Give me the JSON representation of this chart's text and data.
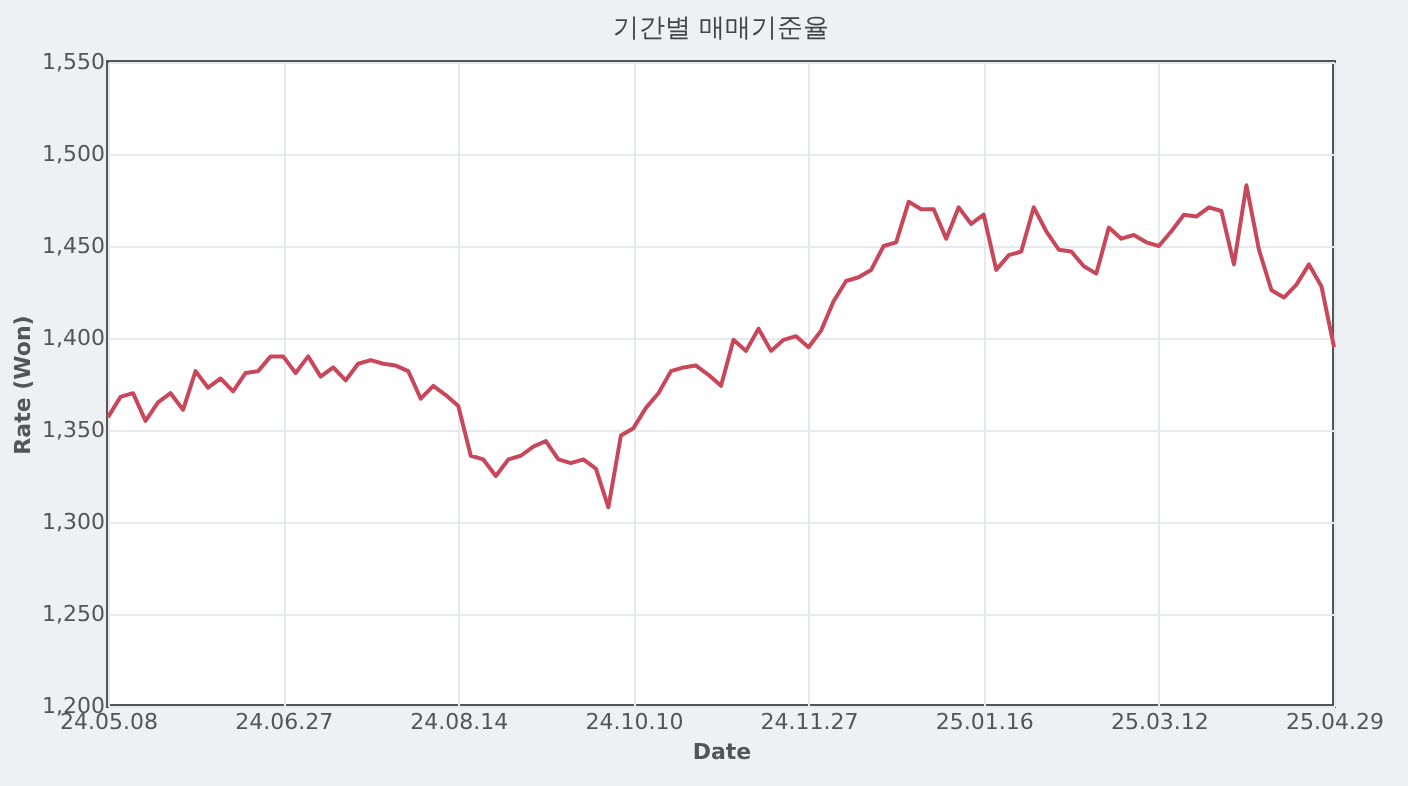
{
  "chart_data": {
    "type": "line",
    "title": "기간별 매매기준율",
    "xlabel": "Date",
    "ylabel": "Rate (Won)",
    "categories": [
      "24.05.08",
      null,
      null,
      null,
      null,
      null,
      null,
      null,
      null,
      null,
      null,
      null,
      null,
      null,
      "24.06.27",
      null,
      null,
      null,
      null,
      null,
      null,
      null,
      null,
      null,
      null,
      null,
      null,
      null,
      "24.08.14",
      null,
      null,
      null,
      null,
      null,
      null,
      null,
      null,
      null,
      null,
      null,
      null,
      null,
      "24.10.10",
      null,
      null,
      null,
      null,
      null,
      null,
      null,
      null,
      null,
      null,
      null,
      null,
      null,
      "24.11.27",
      null,
      null,
      null,
      null,
      null,
      null,
      null,
      null,
      null,
      null,
      null,
      null,
      null,
      "25.01.16",
      null,
      null,
      null,
      null,
      null,
      null,
      null,
      null,
      null,
      null,
      null,
      null,
      null,
      "25.03.12",
      null,
      null,
      null,
      null,
      null,
      null,
      null,
      null,
      null,
      null,
      null,
      null,
      null,
      "25.04.29"
    ],
    "series": [
      {
        "color": "#c8475a",
        "values": [
          1357,
          1368,
          1370,
          1355,
          1365,
          1370,
          1361,
          1382,
          1373,
          1378,
          1371,
          1381,
          1382,
          1390,
          1390,
          1381,
          1390,
          1379,
          1384,
          1377,
          1386,
          1388,
          1386,
          1385,
          1382,
          1367,
          1374,
          1369,
          1363,
          1336,
          1334,
          1325,
          1334,
          1336,
          1341,
          1344,
          1334,
          1332,
          1334,
          1329,
          1308,
          1347,
          1351,
          1362,
          1370,
          1382,
          1384,
          1385,
          1380,
          1374,
          1399,
          1393,
          1405,
          1393,
          1399,
          1401,
          1395,
          1404,
          1420,
          1431,
          1433,
          1437,
          1450,
          1452,
          1474,
          1470,
          1470,
          1454,
          1471,
          1462,
          1467,
          1437,
          1445,
          1447,
          1471,
          1458,
          1448,
          1447,
          1439,
          1435,
          1460,
          1454,
          1456,
          1452,
          1450,
          1458,
          1467,
          1466,
          1471,
          1469,
          1440,
          1483,
          1448,
          1426,
          1422,
          1429,
          1440,
          1428,
          1395
        ]
      }
    ],
    "ylim": [
      1200,
      1550
    ],
    "yticks": [
      {
        "value": 1200,
        "label": "1,200"
      },
      {
        "value": 1250,
        "label": "1,250"
      },
      {
        "value": 1300,
        "label": "1,300"
      },
      {
        "value": 1350,
        "label": "1,350"
      },
      {
        "value": 1400,
        "label": "1,400"
      },
      {
        "value": 1450,
        "label": "1,450"
      },
      {
        "value": 1500,
        "label": "1,500"
      },
      {
        "value": 1550,
        "label": "1,550"
      }
    ],
    "grid": true,
    "marker": "none",
    "line_style": "solid",
    "legend": false
  }
}
